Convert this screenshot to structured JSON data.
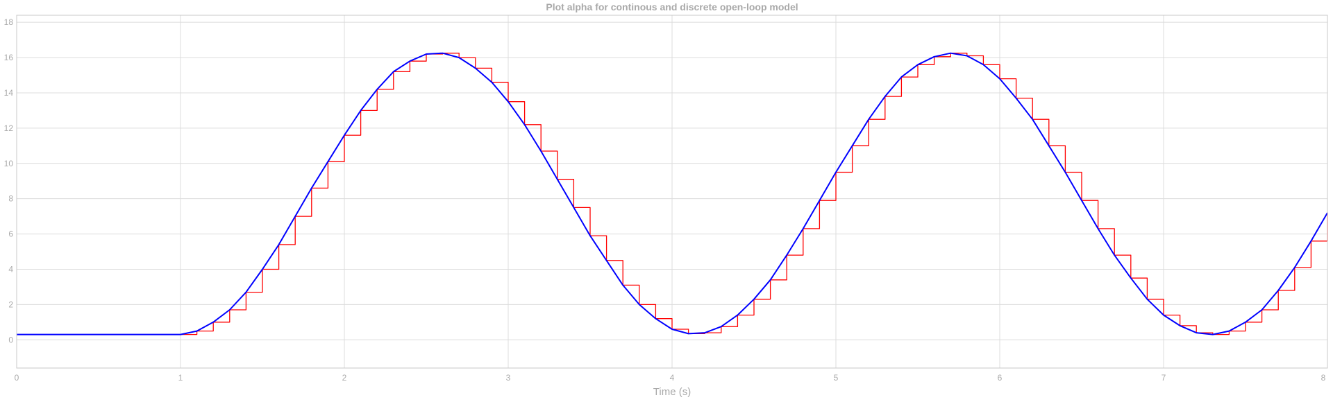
{
  "chart_data": {
    "type": "line",
    "title": "Plot alpha for continous and discrete open-loop model",
    "xlabel": "Time (s)",
    "ylabel": "",
    "xlim": [
      0,
      8
    ],
    "ylim": [
      -1.6,
      18.4
    ],
    "xticks": [
      0,
      1,
      2,
      3,
      4,
      5,
      6,
      7,
      8
    ],
    "yticks": [
      0,
      2,
      4,
      6,
      8,
      10,
      12,
      14,
      16,
      18
    ],
    "grid": true,
    "legend": "none",
    "series": [
      {
        "color": "#0000ff",
        "style": "line",
        "x": [
          0,
          0.5,
          1.0,
          1.1,
          1.2,
          1.3,
          1.4,
          1.5,
          1.6,
          1.7,
          1.8,
          1.9,
          2.0,
          2.1,
          2.2,
          2.3,
          2.4,
          2.5,
          2.6,
          2.7,
          2.8,
          2.9,
          3.0,
          3.1,
          3.2,
          3.3,
          3.4,
          3.5,
          3.6,
          3.7,
          3.8,
          3.9,
          4.0,
          4.1,
          4.2,
          4.3,
          4.4,
          4.5,
          4.6,
          4.7,
          4.8,
          4.9,
          5.0,
          5.1,
          5.2,
          5.3,
          5.4,
          5.5,
          5.6,
          5.7,
          5.8,
          5.9,
          6.0,
          6.1,
          6.2,
          6.3,
          6.4,
          6.5,
          6.6,
          6.7,
          6.8,
          6.9,
          7.0,
          7.1,
          7.2,
          7.3,
          7.4,
          7.5,
          7.6,
          7.7,
          7.8,
          7.9,
          8.0
        ],
        "y": [
          0.3,
          0.3,
          0.3,
          0.5,
          1.0,
          1.7,
          2.7,
          4.0,
          5.4,
          7.0,
          8.6,
          10.1,
          11.6,
          13.0,
          14.2,
          15.2,
          15.8,
          16.2,
          16.25,
          16.0,
          15.4,
          14.6,
          13.5,
          12.2,
          10.7,
          9.1,
          7.5,
          5.9,
          4.5,
          3.1,
          2.0,
          1.2,
          0.6,
          0.35,
          0.4,
          0.75,
          1.4,
          2.3,
          3.4,
          4.8,
          6.3,
          7.9,
          9.5,
          11.0,
          12.5,
          13.8,
          14.9,
          15.6,
          16.05,
          16.25,
          16.1,
          15.6,
          14.8,
          13.7,
          12.5,
          11.0,
          9.5,
          7.9,
          6.3,
          4.8,
          3.5,
          2.3,
          1.4,
          0.8,
          0.4,
          0.3,
          0.5,
          1.0,
          1.7,
          2.8,
          4.1,
          5.6,
          7.2
        ]
      },
      {
        "color": "#ff0000",
        "style": "stairs",
        "x": [
          0,
          0.5,
          1.0,
          1.1,
          1.2,
          1.3,
          1.4,
          1.5,
          1.6,
          1.7,
          1.8,
          1.9,
          2.0,
          2.1,
          2.2,
          2.3,
          2.4,
          2.5,
          2.6,
          2.7,
          2.8,
          2.9,
          3.0,
          3.1,
          3.2,
          3.3,
          3.4,
          3.5,
          3.6,
          3.7,
          3.8,
          3.9,
          4.0,
          4.1,
          4.2,
          4.3,
          4.4,
          4.5,
          4.6,
          4.7,
          4.8,
          4.9,
          5.0,
          5.1,
          5.2,
          5.3,
          5.4,
          5.5,
          5.6,
          5.7,
          5.8,
          5.9,
          6.0,
          6.1,
          6.2,
          6.3,
          6.4,
          6.5,
          6.6,
          6.7,
          6.8,
          6.9,
          7.0,
          7.1,
          7.2,
          7.3,
          7.4,
          7.5,
          7.6,
          7.7,
          7.8,
          7.9,
          8.0
        ],
        "y": [
          0.3,
          0.3,
          0.3,
          0.5,
          1.0,
          1.7,
          2.7,
          4.0,
          5.4,
          7.0,
          8.6,
          10.1,
          11.6,
          13.0,
          14.2,
          15.2,
          15.8,
          16.2,
          16.25,
          16.0,
          15.4,
          14.6,
          13.5,
          12.2,
          10.7,
          9.1,
          7.5,
          5.9,
          4.5,
          3.1,
          2.0,
          1.2,
          0.6,
          0.35,
          0.4,
          0.75,
          1.4,
          2.3,
          3.4,
          4.8,
          6.3,
          7.9,
          9.5,
          11.0,
          12.5,
          13.8,
          14.9,
          15.6,
          16.05,
          16.25,
          16.1,
          15.6,
          14.8,
          13.7,
          12.5,
          11.0,
          9.5,
          7.9,
          6.3,
          4.8,
          3.5,
          2.3,
          1.4,
          0.8,
          0.4,
          0.3,
          0.5,
          1.0,
          1.7,
          2.8,
          4.1,
          5.6,
          7.2
        ]
      }
    ]
  }
}
